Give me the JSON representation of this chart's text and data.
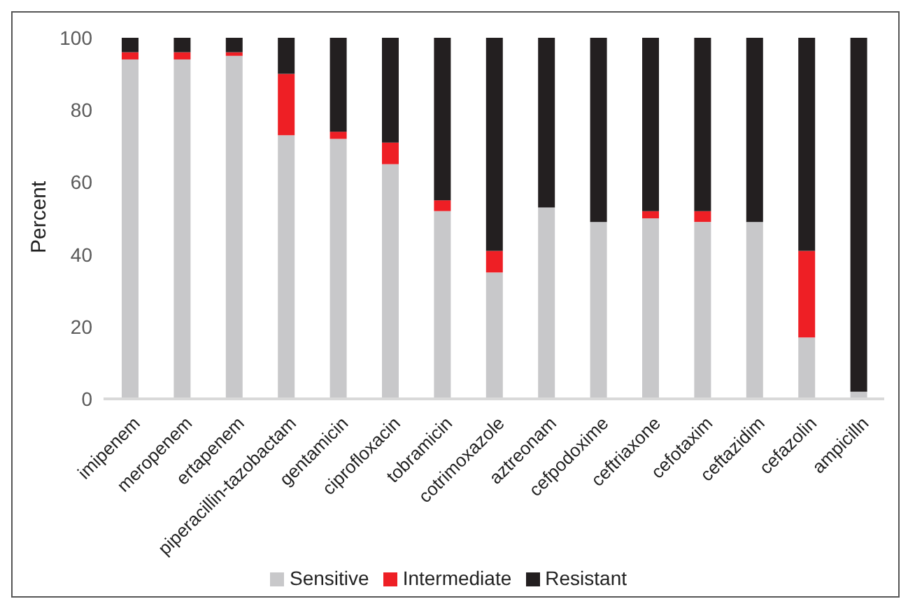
{
  "chart_data": {
    "type": "bar",
    "stacked": true,
    "ylabel": "Percent",
    "categories": [
      "imipenem",
      "meropenem",
      "ertapenem",
      "piperacillin-tazobactam",
      "gentamicin",
      "ciprofloxacin",
      "tobramicin",
      "cotrimoxazole",
      "aztreonam",
      "cefpodoxime",
      "ceftriaxone",
      "cefotaxim",
      "ceftazidim",
      "cefazolin",
      "ampicilln"
    ],
    "series": [
      {
        "name": "Sensitive",
        "color": "#c8c8ca",
        "values": [
          94,
          94,
          95,
          73,
          72,
          65,
          52,
          35,
          53,
          49,
          50,
          49,
          49,
          17,
          2
        ]
      },
      {
        "name": "Intermediate",
        "color": "#ee1f25",
        "values": [
          2,
          2,
          1,
          17,
          2,
          6,
          3,
          6,
          0,
          0,
          2,
          3,
          0,
          24,
          0
        ]
      },
      {
        "name": "Resistant",
        "color": "#231f20",
        "values": [
          4,
          4,
          4,
          10,
          26,
          29,
          45,
          59,
          47,
          51,
          48,
          48,
          51,
          59,
          98
        ]
      }
    ],
    "ylim": [
      0,
      100
    ],
    "yticks": [
      0,
      20,
      40,
      60,
      80,
      100
    ],
    "grid": false,
    "legend": "bottom"
  }
}
